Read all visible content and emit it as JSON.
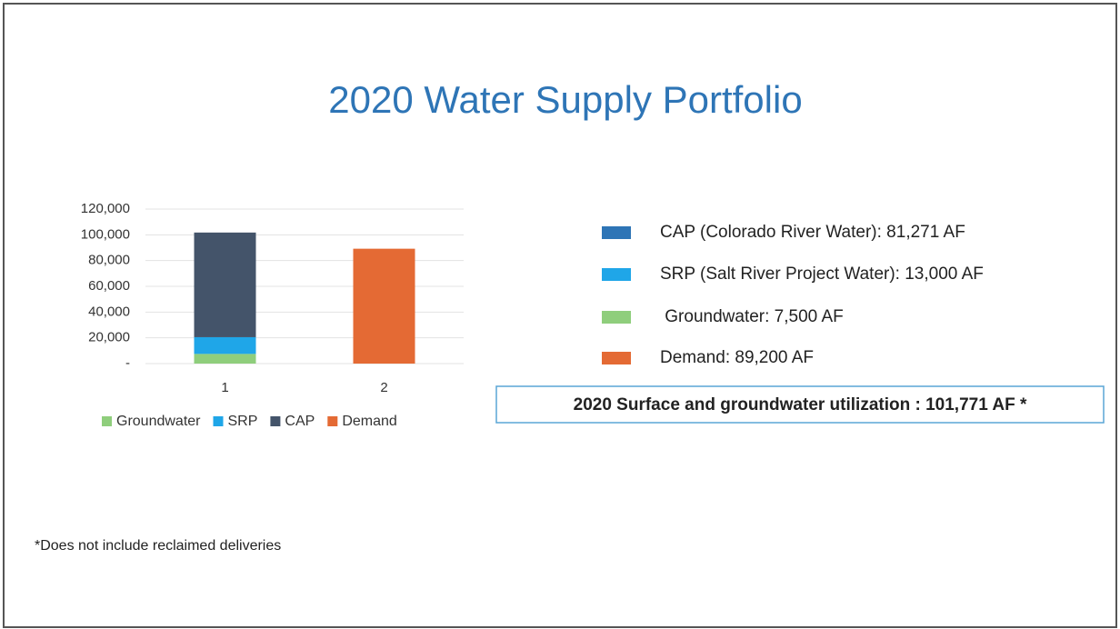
{
  "chart_data": {
    "type": "bar",
    "stacked": true,
    "title": "2020 Water Supply Portfolio",
    "categories": [
      "1",
      "2"
    ],
    "series": [
      {
        "name": "Groundwater",
        "color": "#8fce7c",
        "values": [
          7500,
          null
        ]
      },
      {
        "name": "SRP",
        "color": "#1fa6e8",
        "values": [
          13000,
          null
        ]
      },
      {
        "name": "CAP",
        "color": "#44546a",
        "values": [
          81271,
          null
        ]
      },
      {
        "name": "Demand",
        "color": "#e46a34",
        "values": [
          null,
          89200
        ]
      }
    ],
    "ylim": [
      0,
      120000
    ],
    "yticks": [
      {
        "value": 0,
        "label": "-"
      },
      {
        "value": 20000,
        "label": "20,000"
      },
      {
        "value": 40000,
        "label": "40,000"
      },
      {
        "value": 60000,
        "label": "60,000"
      },
      {
        "value": 80000,
        "label": "80,000"
      },
      {
        "value": 100000,
        "label": "100,000"
      },
      {
        "value": 120000,
        "label": "120,000"
      }
    ],
    "grid": true,
    "legend": "bottom",
    "annotations": [
      {
        "text": "CAP (Colorado River Water): 81,271 AF",
        "color": "#2e75b6"
      },
      {
        "text": "SRP (Salt River Project Water): 13,000 AF",
        "color": "#1fa6e8"
      },
      {
        "text": " Groundwater: 7,500 AF",
        "color": "#8fce7c"
      },
      {
        "text": "Demand: 89,200 AF",
        "color": "#e46a34"
      }
    ],
    "summary": "2020 Surface and groundwater utilization : 101,771 AF *",
    "footnote": "*Does not include reclaimed deliveries"
  }
}
